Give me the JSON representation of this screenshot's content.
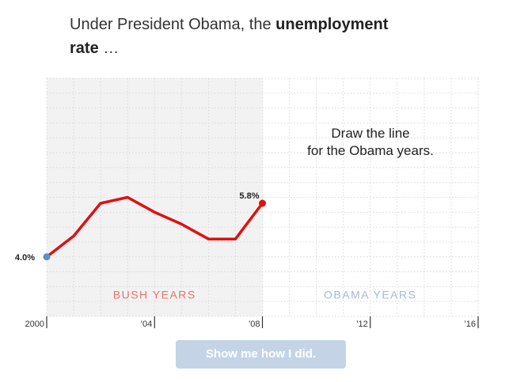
{
  "headline": {
    "part1": "Under President Obama, the ",
    "bold1": "unemployment",
    "bold2": "rate",
    "part2": " …"
  },
  "prompt_line1": "Draw the line",
  "prompt_line2": "for the Obama years.",
  "button_label": "Show me how I did.",
  "colors": {
    "line": "#e01010",
    "start_dot": "#5c8fc4",
    "end_dot": "#e01010",
    "bush_label": "#e8736a",
    "obama_label": "#9fbcd8",
    "shade": "#f2f2f2",
    "grid": "#d9d9d9"
  },
  "chart_data": {
    "type": "line",
    "title": "Under President Obama, the unemployment rate …",
    "xlim": [
      2000,
      2016
    ],
    "ylim": [
      2,
      10
    ],
    "grid": true,
    "x_ticks": [
      {
        "value": 2000,
        "label": "2000"
      },
      {
        "value": 2004,
        "label": "’04"
      },
      {
        "value": 2008,
        "label": "’08"
      },
      {
        "value": 2012,
        "label": "’12"
      },
      {
        "value": 2016,
        "label": "’16"
      }
    ],
    "series": [
      {
        "x": [
          2000,
          2001,
          2002,
          2003,
          2004,
          2005,
          2006,
          2007,
          2008
        ],
        "y": [
          4.0,
          4.7,
          5.8,
          6.0,
          5.5,
          5.1,
          4.6,
          4.6,
          5.8
        ]
      }
    ],
    "start_label": "4.0%",
    "end_label": "5.8%",
    "bush_label": "BUSH YEARS",
    "obama_label": "OBAMA YEARS",
    "bush_range": [
      2000,
      2008
    ],
    "obama_range": [
      2008,
      2016
    ]
  }
}
